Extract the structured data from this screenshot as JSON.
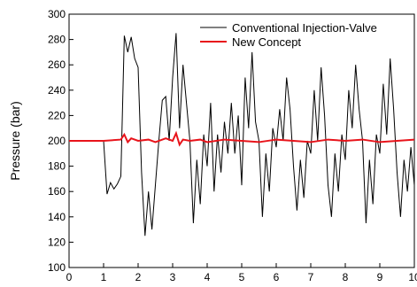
{
  "chart_data": {
    "type": "line",
    "ylabel": "Pressure (bar)",
    "xlim": [
      0,
      10
    ],
    "xticks": [
      0,
      1,
      2,
      3,
      4,
      5,
      6,
      7,
      8,
      9,
      10
    ],
    "ylim": [
      100,
      300
    ],
    "yticks": [
      100,
      120,
      140,
      160,
      180,
      200,
      220,
      240,
      260,
      280,
      300
    ],
    "legend": "top-right",
    "series": [
      {
        "name": "Conventional Injection-Valve",
        "color": "#000000",
        "x": [
          1.0,
          1.1,
          1.2,
          1.3,
          1.4,
          1.5,
          1.6,
          1.7,
          1.8,
          1.9,
          2.0,
          2.1,
          2.2,
          2.3,
          2.4,
          2.5,
          2.6,
          2.7,
          2.8,
          2.9,
          3.0,
          3.1,
          3.2,
          3.3,
          3.4,
          3.5,
          3.6,
          3.7,
          3.8,
          3.9,
          4.0,
          4.1,
          4.2,
          4.3,
          4.4,
          4.5,
          4.6,
          4.7,
          4.8,
          4.9,
          5.0,
          5.1,
          5.2,
          5.3,
          5.4,
          5.5,
          5.6,
          5.7,
          5.8,
          5.9,
          6.0,
          6.1,
          6.2,
          6.3,
          6.4,
          6.5,
          6.6,
          6.7,
          6.8,
          6.9,
          7.0,
          7.1,
          7.2,
          7.3,
          7.4,
          7.5,
          7.6,
          7.7,
          7.8,
          7.9,
          8.0,
          8.1,
          8.2,
          8.3,
          8.4,
          8.5,
          8.6,
          8.7,
          8.8,
          8.9,
          9.0,
          9.1,
          9.2,
          9.3,
          9.4,
          9.5,
          9.6,
          9.7,
          9.8,
          9.9,
          10.0
        ],
        "values": [
          200,
          158,
          167,
          162,
          166,
          172,
          283,
          270,
          282,
          265,
          258,
          175,
          125,
          160,
          130,
          165,
          200,
          232,
          235,
          200,
          250,
          285,
          210,
          260,
          230,
          200,
          135,
          185,
          150,
          205,
          180,
          230,
          160,
          205,
          175,
          215,
          190,
          230,
          190,
          220,
          165,
          250,
          210,
          270,
          215,
          200,
          140,
          190,
          160,
          210,
          195,
          225,
          200,
          250,
          225,
          180,
          145,
          185,
          155,
          200,
          190,
          240,
          200,
          258,
          220,
          165,
          140,
          190,
          160,
          205,
          185,
          240,
          210,
          260,
          225,
          200,
          135,
          185,
          150,
          205,
          190,
          245,
          205,
          265,
          225,
          175,
          140,
          185,
          160,
          195,
          165
        ]
      },
      {
        "name": "New Concept",
        "color": "#e8141b",
        "x": [
          0,
          0.5,
          1.0,
          1.5,
          1.6,
          1.7,
          1.8,
          2.0,
          2.3,
          2.5,
          2.8,
          3.0,
          3.1,
          3.2,
          3.3,
          3.5,
          3.8,
          4.0,
          4.5,
          5.0,
          5.5,
          6.0,
          6.5,
          7.0,
          7.5,
          8.0,
          8.5,
          9.0,
          9.5,
          10.0
        ],
        "values": [
          200,
          200,
          200,
          201,
          205,
          199,
          202,
          200,
          201,
          199,
          202,
          200,
          206,
          197,
          201,
          200,
          201,
          199,
          201,
          200,
          199,
          201,
          200,
          199,
          201,
          200,
          201,
          199,
          200,
          201
        ]
      }
    ]
  }
}
